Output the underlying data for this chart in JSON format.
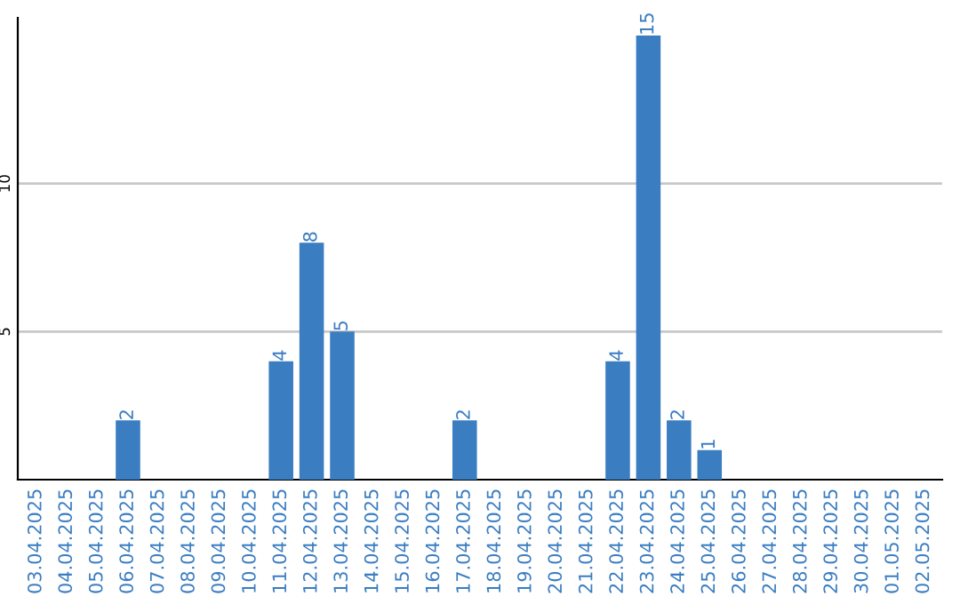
{
  "chart_data": {
    "type": "bar",
    "categories": [
      "03.04.2025",
      "04.04.2025",
      "05.04.2025",
      "06.04.2025",
      "07.04.2025",
      "08.04.2025",
      "09.04.2025",
      "10.04.2025",
      "11.04.2025",
      "12.04.2025",
      "13.04.2025",
      "14.04.2025",
      "15.04.2025",
      "16.04.2025",
      "17.04.2025",
      "18.04.2025",
      "19.04.2025",
      "20.04.2025",
      "21.04.2025",
      "22.04.2025",
      "23.04.2025",
      "24.04.2025",
      "25.04.2025",
      "26.04.2025",
      "27.04.2025",
      "28.04.2025",
      "29.04.2025",
      "30.04.2025",
      "01.05.2025",
      "02.05.2025"
    ],
    "values": [
      0,
      0,
      0,
      2,
      0,
      0,
      0,
      0,
      4,
      8,
      5,
      0,
      0,
      0,
      2,
      0,
      0,
      0,
      0,
      4,
      15,
      2,
      1,
      0,
      0,
      0,
      0,
      0,
      0,
      0
    ],
    "value_labels": [
      null,
      null,
      null,
      "2",
      null,
      null,
      null,
      null,
      "4",
      "8",
      "5",
      null,
      null,
      null,
      "2",
      null,
      null,
      null,
      null,
      "4",
      "15",
      "2",
      "1",
      null,
      null,
      null,
      null,
      null,
      null,
      null
    ],
    "color": "#3a7dc1",
    "ylim": [
      0,
      15.6
    ],
    "yticks": [
      5,
      10
    ],
    "grid": "y"
  }
}
